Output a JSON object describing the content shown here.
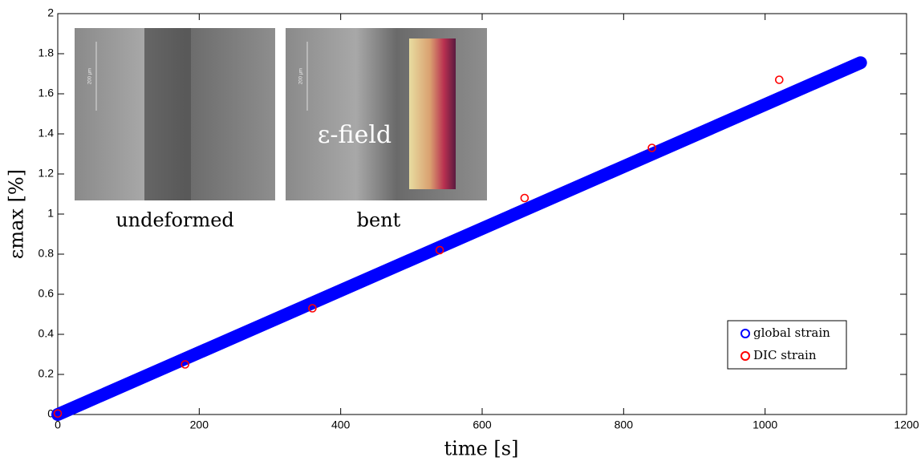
{
  "chart_data": {
    "type": "scatter",
    "x_label": "time [s]",
    "y_label": "εmax [%]",
    "xlim": [
      0,
      1200
    ],
    "xticks": [
      0,
      200,
      400,
      600,
      800,
      1000,
      1200
    ],
    "ylim": [
      0,
      2
    ],
    "yticks": [
      0,
      0.2,
      0.4,
      0.6,
      0.8,
      1,
      1.2,
      1.4,
      1.6,
      1.8,
      2
    ],
    "legend": "lower right",
    "series": [
      {
        "name": "global strain",
        "color": "#0000ff",
        "style": "line",
        "x": [
          0,
          1135
        ],
        "values": [
          0,
          1.755
        ]
      },
      {
        "name": "DIC strain",
        "color": "#ff0000",
        "style": "markers",
        "x": [
          0,
          180,
          360,
          540,
          660,
          840,
          1020
        ],
        "values": [
          0.005,
          0.25,
          0.53,
          0.82,
          1.08,
          1.33,
          1.67
        ]
      }
    ],
    "insets": [
      "undeformed",
      "bent"
    ],
    "field_label": "ε-field",
    "scale_bar_label": "200 µm"
  }
}
